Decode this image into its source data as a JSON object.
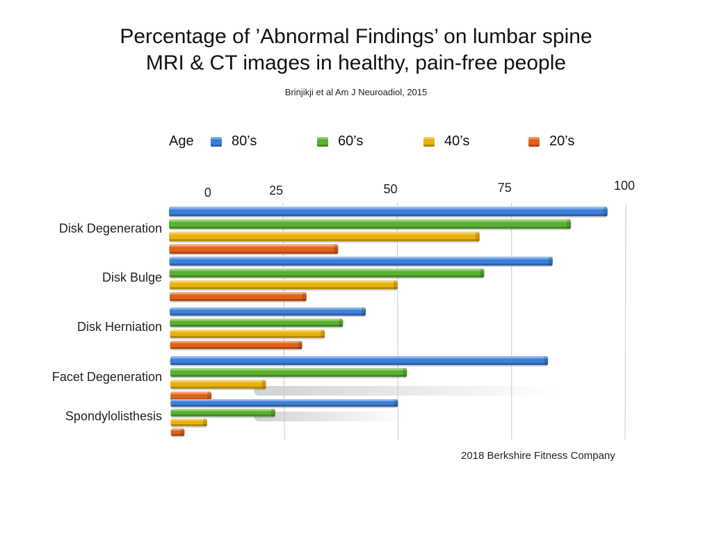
{
  "chart_data": {
    "type": "bar",
    "orientation": "horizontal",
    "title": [
      "Percentage of ’Abnormal Findings’ on lumbar spine",
      "MRI & CT images in healthy, pain-free people"
    ],
    "subtitle": "Brinjikji et al Am J Neuroadiol, 2015",
    "legend_title": "Age",
    "legend_position": "top",
    "xlim": [
      0,
      100
    ],
    "x_ticks": [
      0,
      25,
      50,
      75,
      100
    ],
    "grid": true,
    "categories": [
      "Disk Degeneration",
      "Disk Bulge",
      "Disk Herniation",
      "Facet Degeneration",
      "Spondylolisthesis"
    ],
    "series": [
      {
        "name": "80’s",
        "color": "#3b7fd9",
        "values": [
          96,
          84,
          43,
          83,
          50
        ]
      },
      {
        "name": "60’s",
        "color": "#5ab030",
        "values": [
          88,
          69,
          38,
          52,
          23
        ]
      },
      {
        "name": "40’s",
        "color": "#e8b10e",
        "values": [
          68,
          50,
          34,
          21,
          8
        ]
      },
      {
        "name": "20’s",
        "color": "#e06218",
        "values": [
          37,
          30,
          29,
          9,
          3
        ]
      }
    ]
  },
  "credit": "2018 Berkshire Fitness Company"
}
